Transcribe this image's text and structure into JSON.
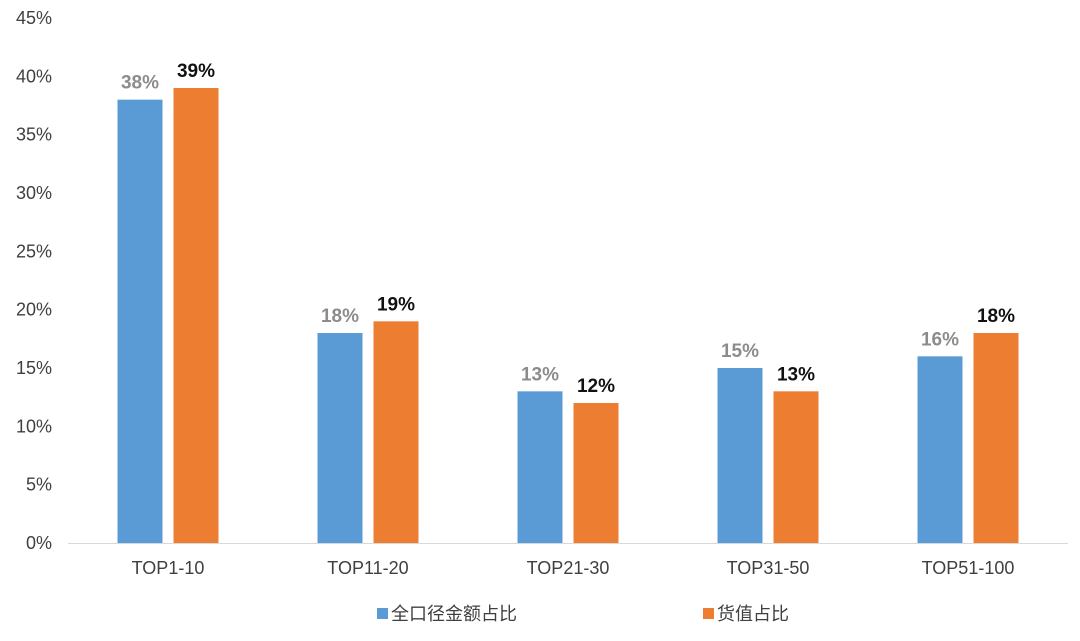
{
  "chart_data": {
    "type": "bar",
    "categories": [
      "TOP1-10",
      "TOP11-20",
      "TOP21-30",
      "TOP31-50",
      "TOP51-100"
    ],
    "series": [
      {
        "name": "全口径金额占比",
        "color": "#5b9bd5",
        "values": [
          38,
          18,
          13,
          15,
          16
        ],
        "labels": [
          "38%",
          "18%",
          "13%",
          "15%",
          "16%"
        ]
      },
      {
        "name": "货值占比",
        "color": "#ed7d31",
        "values": [
          39,
          19,
          12,
          13,
          18
        ],
        "labels": [
          "39%",
          "19%",
          "12%",
          "13%",
          "18%"
        ]
      }
    ],
    "ylim": [
      0,
      45
    ],
    "yticks": [
      0,
      5,
      10,
      15,
      20,
      25,
      30,
      35,
      40,
      45
    ],
    "ytick_labels": [
      "0%",
      "5%",
      "10%",
      "15%",
      "20%",
      "25%",
      "30%",
      "35%",
      "40%",
      "45%"
    ],
    "grid": false,
    "legend_position": "bottom",
    "title": "",
    "xlabel": "",
    "ylabel": ""
  }
}
